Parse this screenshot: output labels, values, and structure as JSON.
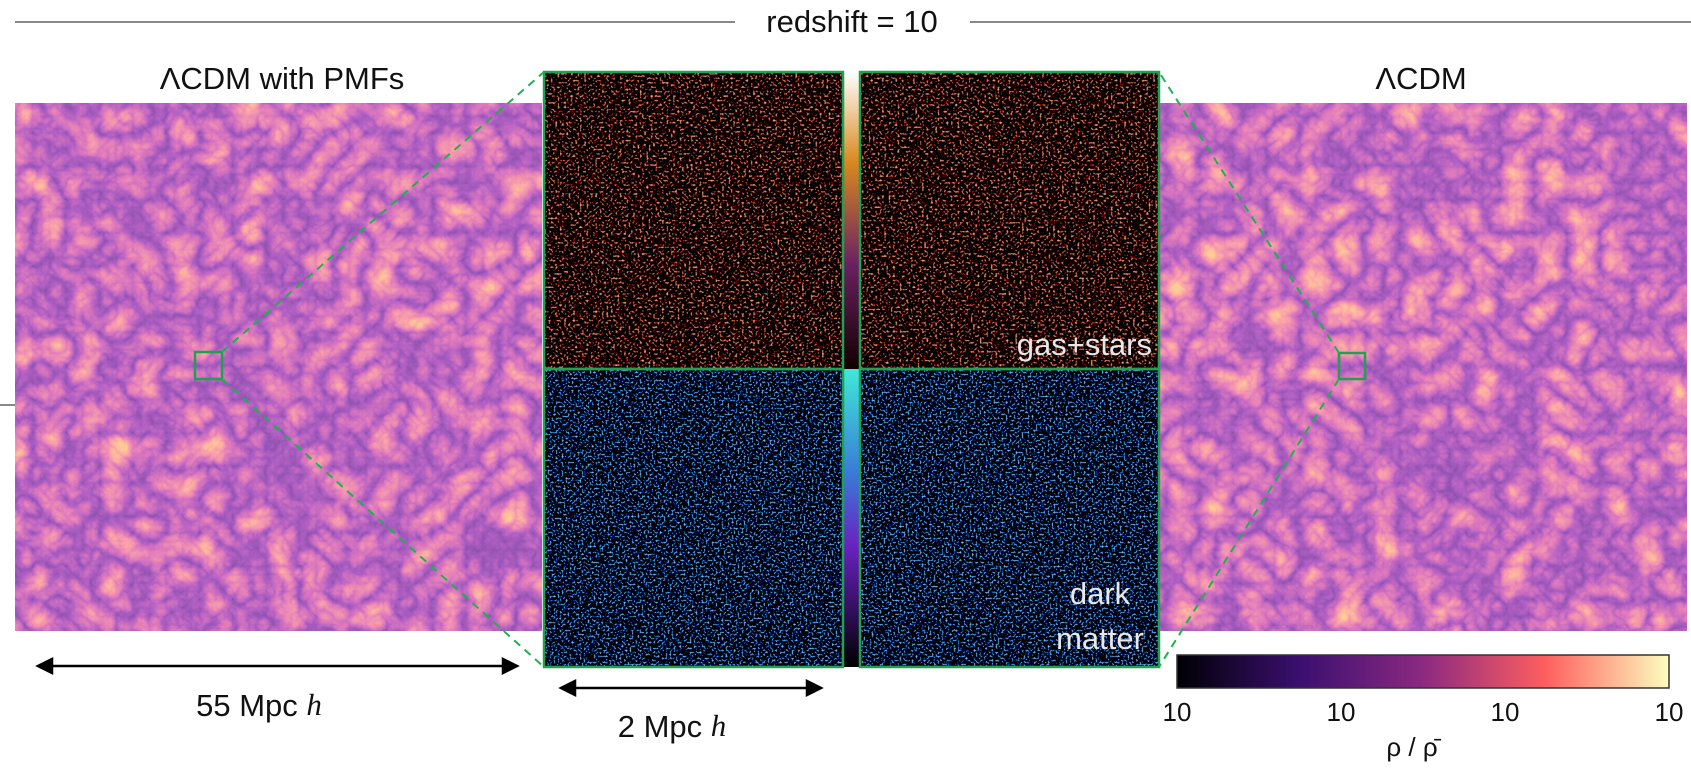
{
  "header": {
    "title": "redshift = 10"
  },
  "panels": {
    "left": {
      "title": "ΛCDM with PMFs",
      "scale": {
        "value": "55 Mpc",
        "unit": "h"
      }
    },
    "right": {
      "title": "ΛCDM"
    },
    "zoom": {
      "scale": {
        "value": "2 Mpc",
        "unit": "h"
      },
      "gas_label": "gas+stars",
      "dm_label": [
        "dark",
        "matter"
      ]
    }
  },
  "colorbar": {
    "tick_labels": [
      "10",
      "10",
      "10",
      "10"
    ],
    "label": "ρ / ρ̄"
  }
}
